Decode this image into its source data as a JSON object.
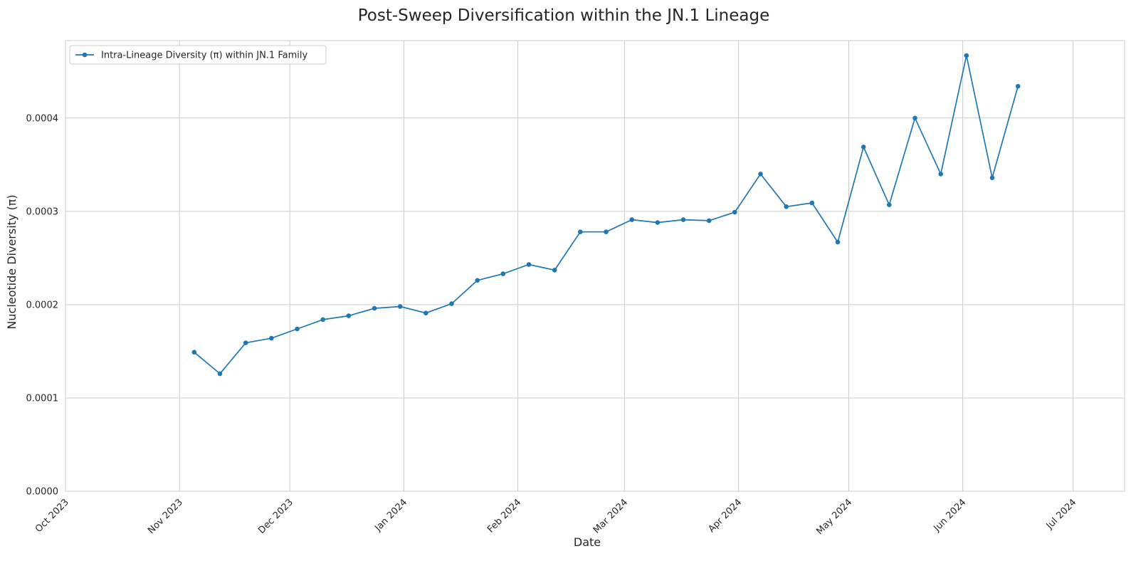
{
  "chart_data": {
    "type": "line",
    "title": "Post-Sweep Diversification within the JN.1 Lineage",
    "xlabel": "Date",
    "ylabel": "Nucleotide Diversity (π)",
    "xlim": [
      "2023-10-01",
      "2024-07-15"
    ],
    "ylim": [
      0,
      0.000483
    ],
    "x_ticks": [
      {
        "date": "2023-10-01",
        "label": "Oct 2023"
      },
      {
        "date": "2023-11-01",
        "label": "Nov 2023"
      },
      {
        "date": "2023-12-01",
        "label": "Dec 2023"
      },
      {
        "date": "2024-01-01",
        "label": "Jan 2024"
      },
      {
        "date": "2024-02-01",
        "label": "Feb 2024"
      },
      {
        "date": "2024-03-01",
        "label": "Mar 2024"
      },
      {
        "date": "2024-04-01",
        "label": "Apr 2024"
      },
      {
        "date": "2024-05-01",
        "label": "May 2024"
      },
      {
        "date": "2024-06-01",
        "label": "Jun 2024"
      },
      {
        "date": "2024-07-01",
        "label": "Jul 2024"
      }
    ],
    "y_ticks": [
      {
        "value": 0,
        "label": "0.0000"
      },
      {
        "value": 0.0001,
        "label": "0.0001"
      },
      {
        "value": 0.0002,
        "label": "0.0002"
      },
      {
        "value": 0.0003,
        "label": "0.0003"
      },
      {
        "value": 0.0004,
        "label": "0.0004"
      }
    ],
    "grid": true,
    "legend_position": "upper-left",
    "series": [
      {
        "name": "Intra-Lineage Diversity (π) within JN.1 Family",
        "color": "#1f77b4",
        "marker": "circle",
        "points": [
          {
            "x": "2023-11-05",
            "y": 0.000149
          },
          {
            "x": "2023-11-12",
            "y": 0.000126
          },
          {
            "x": "2023-11-19",
            "y": 0.000159
          },
          {
            "x": "2023-11-26",
            "y": 0.000164
          },
          {
            "x": "2023-12-03",
            "y": 0.000174
          },
          {
            "x": "2023-12-10",
            "y": 0.000184
          },
          {
            "x": "2023-12-17",
            "y": 0.000188
          },
          {
            "x": "2023-12-24",
            "y": 0.000196
          },
          {
            "x": "2023-12-31",
            "y": 0.000198
          },
          {
            "x": "2024-01-07",
            "y": 0.000191
          },
          {
            "x": "2024-01-14",
            "y": 0.000201
          },
          {
            "x": "2024-01-21",
            "y": 0.000226
          },
          {
            "x": "2024-01-28",
            "y": 0.000233
          },
          {
            "x": "2024-02-04",
            "y": 0.000243
          },
          {
            "x": "2024-02-11",
            "y": 0.000237
          },
          {
            "x": "2024-02-18",
            "y": 0.000278
          },
          {
            "x": "2024-02-25",
            "y": 0.000278
          },
          {
            "x": "2024-03-03",
            "y": 0.000291
          },
          {
            "x": "2024-03-10",
            "y": 0.000288
          },
          {
            "x": "2024-03-17",
            "y": 0.000291
          },
          {
            "x": "2024-03-24",
            "y": 0.00029
          },
          {
            "x": "2024-03-31",
            "y": 0.000299
          },
          {
            "x": "2024-04-07",
            "y": 0.00034
          },
          {
            "x": "2024-04-14",
            "y": 0.000305
          },
          {
            "x": "2024-04-21",
            "y": 0.000309
          },
          {
            "x": "2024-04-28",
            "y": 0.000267
          },
          {
            "x": "2024-05-05",
            "y": 0.000369
          },
          {
            "x": "2024-05-12",
            "y": 0.000307
          },
          {
            "x": "2024-05-19",
            "y": 0.0004
          },
          {
            "x": "2024-05-26",
            "y": 0.00034
          },
          {
            "x": "2024-06-02",
            "y": 0.000467
          },
          {
            "x": "2024-06-09",
            "y": 0.000336
          },
          {
            "x": "2024-06-16",
            "y": 0.000434
          }
        ]
      }
    ]
  }
}
